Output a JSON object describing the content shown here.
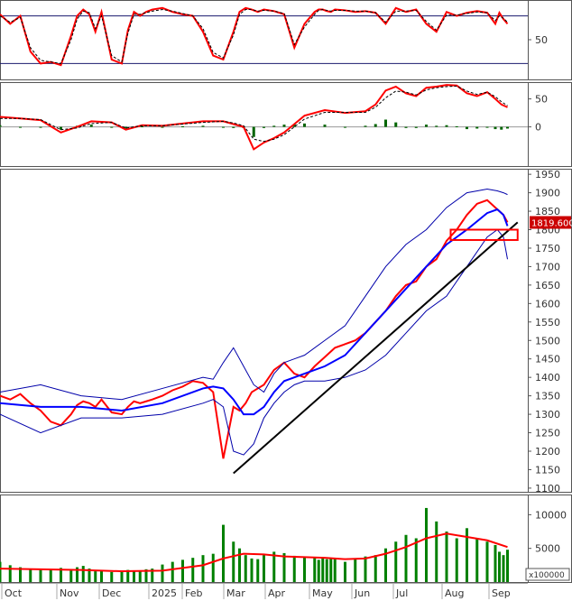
{
  "chart_data": [
    {
      "panel": "stochastic",
      "type": "line",
      "ylim": [
        0,
        100
      ],
      "y_ticks": [
        "50"
      ],
      "reference_lines": [
        20,
        80
      ],
      "series": [
        {
          "color": "#ff0000",
          "style": "solid",
          "x": [
            0,
            5,
            10,
            15,
            20,
            25,
            30,
            35,
            38,
            41,
            44,
            47,
            50,
            55,
            60,
            63,
            66,
            69,
            72,
            75,
            80,
            85,
            90,
            95,
            100,
            105,
            110,
            115,
            118,
            121,
            124,
            127,
            130,
            135,
            140,
            145,
            150,
            155,
            157,
            159,
            161,
            163,
            165,
            170,
            175,
            180,
            185,
            190,
            195,
            200,
            205,
            210,
            215,
            220,
            225,
            230,
            235,
            240,
            244,
            246,
            248,
            250
          ],
          "values": [
            82,
            70,
            80,
            35,
            20,
            22,
            18,
            55,
            80,
            88,
            82,
            60,
            85,
            25,
            20,
            62,
            85,
            80,
            85,
            88,
            90,
            85,
            82,
            80,
            60,
            30,
            25,
            60,
            85,
            90,
            88,
            85,
            88,
            86,
            82,
            40,
            70,
            85,
            88,
            88,
            86,
            85,
            88,
            87,
            85,
            86,
            84,
            70,
            90,
            85,
            88,
            70,
            60,
            85,
            80,
            84,
            86,
            84,
            70,
            84,
            76,
            70
          ]
        },
        {
          "color": "#000000",
          "style": "dashed",
          "x": [
            0,
            5,
            10,
            15,
            20,
            25,
            30,
            35,
            38,
            41,
            44,
            47,
            50,
            55,
            60,
            63,
            66,
            69,
            72,
            75,
            80,
            85,
            90,
            95,
            100,
            105,
            110,
            115,
            118,
            121,
            124,
            127,
            130,
            135,
            140,
            145,
            150,
            155,
            157,
            159,
            161,
            163,
            165,
            170,
            175,
            180,
            185,
            190,
            195,
            200,
            205,
            210,
            215,
            220,
            225,
            230,
            235,
            240,
            244,
            246,
            248,
            250
          ],
          "values": [
            80,
            72,
            78,
            40,
            24,
            22,
            20,
            50,
            76,
            86,
            84,
            64,
            80,
            30,
            22,
            58,
            82,
            82,
            84,
            86,
            88,
            86,
            83,
            80,
            64,
            34,
            27,
            56,
            82,
            88,
            88,
            86,
            87,
            86,
            83,
            44,
            66,
            82,
            87,
            88,
            87,
            86,
            87,
            87,
            86,
            86,
            84,
            72,
            86,
            86,
            87,
            73,
            62,
            81,
            81,
            83,
            85,
            84,
            74,
            80,
            77,
            72
          ]
        }
      ]
    },
    {
      "panel": "macd",
      "type": "line",
      "ylim": [
        -70,
        80
      ],
      "y_ticks": [
        "50",
        "0"
      ],
      "series": [
        {
          "color": "#ff0000",
          "style": "solid",
          "x": [
            0,
            10,
            20,
            30,
            38,
            45,
            55,
            62,
            70,
            80,
            90,
            100,
            110,
            115,
            120,
            125,
            130,
            135,
            140,
            145,
            150,
            160,
            170,
            180,
            185,
            190,
            195,
            200,
            205,
            210,
            215,
            220,
            225,
            230,
            235,
            240,
            244,
            247,
            250
          ],
          "values": [
            18,
            15,
            12,
            -10,
            0,
            10,
            8,
            -5,
            3,
            2,
            6,
            10,
            10,
            5,
            0,
            -40,
            -28,
            -20,
            -10,
            5,
            20,
            30,
            25,
            28,
            40,
            65,
            72,
            60,
            55,
            70,
            72,
            75,
            74,
            60,
            55,
            62,
            50,
            40,
            35
          ]
        },
        {
          "color": "#000000",
          "style": "dashed",
          "x": [
            0,
            10,
            20,
            30,
            38,
            45,
            55,
            62,
            70,
            80,
            90,
            100,
            110,
            115,
            120,
            125,
            130,
            135,
            140,
            145,
            150,
            160,
            170,
            180,
            185,
            190,
            195,
            200,
            205,
            210,
            215,
            220,
            225,
            230,
            235,
            240,
            244,
            247,
            250
          ],
          "values": [
            15,
            15,
            13,
            -5,
            -2,
            6,
            8,
            -2,
            2,
            2,
            5,
            8,
            10,
            7,
            2,
            -22,
            -26,
            -22,
            -14,
            0,
            14,
            26,
            26,
            26,
            35,
            52,
            64,
            62,
            57,
            66,
            70,
            72,
            73,
            64,
            58,
            62,
            54,
            45,
            38
          ]
        }
      ],
      "histogram": {
        "color": "#006400",
        "x": [
          0,
          10,
          20,
          30,
          38,
          45,
          55,
          62,
          70,
          80,
          90,
          100,
          110,
          115,
          120,
          125,
          130,
          135,
          140,
          145,
          150,
          160,
          170,
          180,
          185,
          190,
          195,
          200,
          205,
          210,
          215,
          220,
          225,
          230,
          235,
          240,
          244,
          247,
          250
        ],
        "values": [
          3,
          0,
          -1,
          -5,
          2,
          4,
          0,
          -3,
          1,
          0,
          1,
          2,
          0,
          -2,
          -2,
          -18,
          -2,
          2,
          4,
          5,
          6,
          4,
          -1,
          2,
          5,
          13,
          8,
          -2,
          -2,
          4,
          2,
          3,
          1,
          -4,
          -3,
          0,
          -4,
          -5,
          -3
        ]
      }
    },
    {
      "panel": "price",
      "type": "line",
      "ylim": [
        1090,
        1965
      ],
      "y_ticks": [
        "1950",
        "1900",
        "1850",
        "1800",
        "1750",
        "1700",
        "1650",
        "1600",
        "1550",
        "1500",
        "1450",
        "1400",
        "1350",
        "1300",
        "1250",
        "1200",
        "1150",
        "1100"
      ],
      "last_price_label": "1819.600",
      "series": [
        {
          "color": "#ff0000",
          "style": "close",
          "x": [
            0,
            5,
            10,
            15,
            20,
            25,
            30,
            35,
            38,
            41,
            44,
            47,
            50,
            55,
            60,
            63,
            66,
            69,
            72,
            75,
            80,
            85,
            90,
            95,
            100,
            105,
            110,
            115,
            118,
            121,
            124,
            127,
            130,
            135,
            140,
            145,
            150,
            155,
            157,
            159,
            161,
            163,
            165,
            170,
            175,
            180,
            185,
            190,
            195,
            200,
            205,
            210,
            215,
            220,
            225,
            230,
            235,
            240,
            244,
            246,
            248,
            250
          ],
          "values": [
            1350,
            1340,
            1355,
            1330,
            1310,
            1280,
            1270,
            1300,
            1325,
            1335,
            1330,
            1320,
            1340,
            1305,
            1300,
            1320,
            1335,
            1330,
            1335,
            1340,
            1350,
            1365,
            1375,
            1390,
            1385,
            1360,
            1180,
            1320,
            1310,
            1330,
            1360,
            1370,
            1380,
            1420,
            1440,
            1410,
            1400,
            1430,
            1440,
            1450,
            1460,
            1470,
            1480,
            1490,
            1500,
            1520,
            1550,
            1580,
            1620,
            1650,
            1660,
            1700,
            1720,
            1770,
            1800,
            1840,
            1870,
            1880,
            1860,
            1850,
            1840,
            1820
          ]
        },
        {
          "color": "#0000ff",
          "style": "ma",
          "x": [
            0,
            20,
            40,
            60,
            80,
            100,
            105,
            110,
            115,
            120,
            125,
            130,
            135,
            140,
            145,
            150,
            160,
            170,
            180,
            190,
            200,
            210,
            220,
            230,
            240,
            245,
            248,
            250
          ],
          "values": [
            1330,
            1320,
            1320,
            1310,
            1330,
            1370,
            1375,
            1370,
            1340,
            1300,
            1300,
            1320,
            1360,
            1390,
            1400,
            1410,
            1430,
            1460,
            1520,
            1580,
            1640,
            1700,
            1760,
            1800,
            1845,
            1855,
            1840,
            1810
          ]
        },
        {
          "color": "#0000aa",
          "style": "band-upper",
          "x": [
            0,
            20,
            40,
            60,
            80,
            100,
            105,
            110,
            115,
            120,
            125,
            130,
            135,
            140,
            145,
            150,
            160,
            170,
            180,
            190,
            200,
            210,
            220,
            230,
            240,
            245,
            248,
            250
          ],
          "values": [
            1360,
            1380,
            1350,
            1340,
            1370,
            1400,
            1395,
            1440,
            1480,
            1430,
            1380,
            1360,
            1410,
            1440,
            1450,
            1460,
            1500,
            1540,
            1620,
            1700,
            1760,
            1800,
            1860,
            1900,
            1910,
            1905,
            1900,
            1895
          ]
        },
        {
          "color": "#0000aa",
          "style": "band-lower",
          "x": [
            0,
            20,
            40,
            60,
            80,
            100,
            105,
            110,
            115,
            120,
            125,
            130,
            135,
            140,
            145,
            150,
            160,
            170,
            180,
            190,
            200,
            210,
            220,
            230,
            240,
            245,
            248,
            250
          ],
          "values": [
            1300,
            1250,
            1290,
            1290,
            1300,
            1330,
            1340,
            1320,
            1200,
            1190,
            1220,
            1290,
            1330,
            1360,
            1380,
            1390,
            1390,
            1400,
            1420,
            1460,
            1520,
            1580,
            1620,
            1700,
            1780,
            1800,
            1780,
            1720
          ]
        }
      ],
      "trendline": {
        "color": "#000000",
        "x": [
          115,
          255
        ],
        "y": [
          1140,
          1820
        ]
      },
      "support_box": {
        "color": "#ff0000",
        "x": [
          222,
          255
        ],
        "y": [
          1772,
          1800
        ]
      }
    },
    {
      "panel": "volume",
      "type": "bar",
      "ylim": [
        0,
        13000
      ],
      "y_ticks": [
        "10000",
        "5000"
      ],
      "unit_label": "x100000",
      "histogram": {
        "color": "#008000",
        "x": [
          0,
          5,
          10,
          15,
          20,
          25,
          30,
          35,
          38,
          41,
          44,
          47,
          50,
          55,
          60,
          63,
          66,
          69,
          72,
          75,
          80,
          85,
          90,
          95,
          100,
          105,
          110,
          115,
          118,
          121,
          124,
          127,
          130,
          135,
          140,
          145,
          150,
          155,
          157,
          159,
          161,
          163,
          165,
          170,
          175,
          180,
          185,
          190,
          195,
          200,
          205,
          210,
          215,
          220,
          225,
          230,
          235,
          240,
          244,
          246,
          248,
          250
        ],
        "values": [
          3000,
          2500,
          2200,
          2000,
          1800,
          1900,
          2100,
          1700,
          2200,
          2400,
          2000,
          1600,
          1800,
          1500,
          1600,
          1800,
          1700,
          1600,
          1900,
          2000,
          2600,
          3000,
          3300,
          3600,
          4000,
          4200,
          8500,
          6000,
          5000,
          4000,
          3500,
          3400,
          4000,
          4500,
          4300,
          3900,
          3800,
          3600,
          3300,
          3500,
          3400,
          3600,
          3500,
          3000,
          3400,
          3800,
          4000,
          5000,
          6000,
          7000,
          6500,
          11000,
          9000,
          7500,
          6500,
          8000,
          6500,
          6000,
          5500,
          4500,
          4000,
          4800
        ]
      },
      "series": [
        {
          "color": "#ff0000",
          "style": "ma",
          "x": [
            0,
            20,
            40,
            60,
            80,
            100,
            110,
            120,
            130,
            140,
            150,
            160,
            170,
            180,
            190,
            200,
            210,
            220,
            230,
            240,
            250
          ],
          "values": [
            2000,
            1900,
            1800,
            1600,
            1700,
            2500,
            3500,
            4200,
            4100,
            3800,
            3700,
            3600,
            3400,
            3500,
            4200,
            5200,
            6500,
            7200,
            6700,
            6200,
            5200
          ]
        }
      ]
    }
  ],
  "x_axis": {
    "labels": [
      "Oct",
      "Nov",
      "Dec",
      "2025",
      "Feb",
      "Mar",
      "Apr",
      "May",
      "Jun",
      "Jul",
      "Aug",
      "Sep"
    ]
  }
}
